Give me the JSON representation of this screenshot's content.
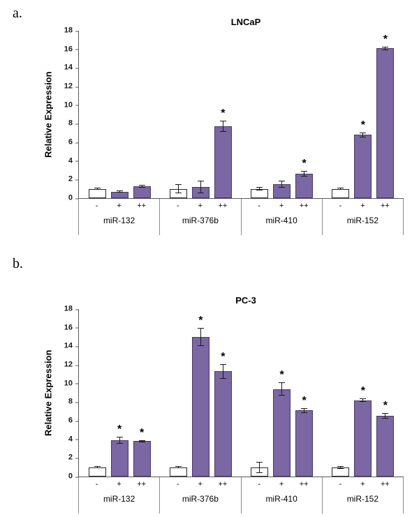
{
  "colors": {
    "control_fill": "#ffffff",
    "control_border": "#262626",
    "treated_fill": "#7a67a3",
    "treated_border": "#463862",
    "axis_line": "#595959",
    "separator": "#8c8c8c",
    "error_bar": "#1a1a1a",
    "background": "#ffffff"
  },
  "chart_data": [
    {
      "type": "bar",
      "panel_label": "a.",
      "title": "LNCaP",
      "xlabel": "",
      "ylabel": "Relative Expression",
      "ylim": [
        0,
        18
      ],
      "ytick_step": 2,
      "grid": false,
      "legend": false,
      "sig_symbol": "*",
      "conditions": [
        "-",
        "+",
        "++"
      ],
      "groups": [
        {
          "name": "miR-132",
          "values": [
            1.0,
            0.7,
            1.3
          ],
          "errors": [
            0.1,
            0.1,
            0.15
          ],
          "sig": [
            false,
            false,
            false
          ]
        },
        {
          "name": "miR-376b",
          "values": [
            1.0,
            1.2,
            7.7
          ],
          "errors": [
            0.5,
            0.7,
            0.6
          ],
          "sig": [
            false,
            false,
            true
          ]
        },
        {
          "name": "miR-410",
          "values": [
            1.0,
            1.5,
            2.6
          ],
          "errors": [
            0.2,
            0.35,
            0.3
          ],
          "sig": [
            false,
            false,
            true
          ]
        },
        {
          "name": "miR-152",
          "values": [
            1.0,
            6.8,
            16.1
          ],
          "errors": [
            0.1,
            0.25,
            0.2
          ],
          "sig": [
            false,
            true,
            true
          ]
        }
      ]
    },
    {
      "type": "bar",
      "panel_label": "b.",
      "title": "PC-3",
      "xlabel": "",
      "ylabel": "Relative Expression",
      "ylim": [
        0,
        18
      ],
      "ytick_step": 2,
      "grid": false,
      "legend": false,
      "sig_symbol": "*",
      "conditions": [
        "-",
        "+",
        "++"
      ],
      "groups": [
        {
          "name": "miR-132",
          "values": [
            1.0,
            3.9,
            3.8
          ],
          "errors": [
            0.1,
            0.35,
            0.1
          ],
          "sig": [
            false,
            true,
            true
          ]
        },
        {
          "name": "miR-376b",
          "values": [
            1.0,
            15.0,
            11.3
          ],
          "errors": [
            0.1,
            1.0,
            0.8
          ],
          "sig": [
            false,
            true,
            true
          ]
        },
        {
          "name": "miR-410",
          "values": [
            1.0,
            9.4,
            7.1
          ],
          "errors": [
            0.6,
            0.7,
            0.25
          ],
          "sig": [
            false,
            true,
            true
          ]
        },
        {
          "name": "miR-152",
          "values": [
            1.0,
            8.2,
            6.5
          ],
          "errors": [
            0.15,
            0.2,
            0.3
          ],
          "sig": [
            false,
            true,
            true
          ]
        }
      ]
    }
  ]
}
